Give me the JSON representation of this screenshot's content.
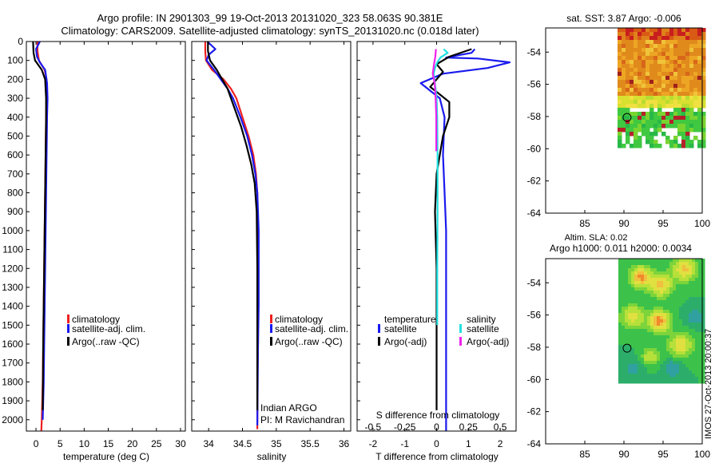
{
  "title": {
    "line1": "Argo profile: IN 2901303_99 19-Oct-2013 20131020_323 58.063S 90.381E",
    "line2": "Climatology: CARS2009. Satellite-adjusted climatology: synTS_20131020.nc (0.018d later)"
  },
  "colors": {
    "climatology": "#ee2020",
    "satellite": "#1a1aee",
    "argo": "#000000",
    "sal_satellite": "#22e0e0",
    "sal_argo": "#ee22ee"
  },
  "chart_data": [
    {
      "id": "temperature",
      "type": "line",
      "xlabel": "temperature (deg C)",
      "ylabel": "",
      "xlim": [
        -2,
        31
      ],
      "ylim": [
        2060,
        0
      ],
      "xticks": [
        0,
        5,
        10,
        15,
        20,
        25,
        30
      ],
      "yticks": [
        0,
        100,
        200,
        300,
        400,
        500,
        600,
        700,
        800,
        900,
        1000,
        1100,
        1200,
        1300,
        1400,
        1500,
        1600,
        1700,
        1800,
        1900,
        2000
      ],
      "legend": [
        "climatology",
        "satellite-adj. clim.",
        "Argo(..raw -QC)"
      ],
      "series": [
        {
          "name": "climatology",
          "color_key": "climatology",
          "x": [
            0.3,
            0.3,
            0.6,
            1.8,
            2.2,
            2.3,
            2.2,
            2.1,
            2.0,
            1.9,
            1.8,
            1.7,
            1.6,
            1.5,
            1.4,
            1.3,
            1.2,
            1.1
          ],
          "y": [
            0,
            50,
            100,
            150,
            200,
            250,
            300,
            400,
            600,
            800,
            1000,
            1200,
            1400,
            1600,
            1800,
            1900,
            2000,
            2060
          ]
        },
        {
          "name": "satellite-adj. clim.",
          "color_key": "satellite",
          "x": [
            0.8,
            0.0,
            0.2,
            0.8,
            1.9,
            2.3,
            2.4,
            2.3,
            2.2,
            2.1,
            2.0,
            1.9,
            1.8,
            1.7,
            1.6,
            1.5,
            1.4
          ],
          "y": [
            0,
            40,
            80,
            110,
            150,
            220,
            300,
            400,
            600,
            800,
            1000,
            1200,
            1400,
            1600,
            1800,
            1900,
            2000
          ]
        },
        {
          "name": "Argo(..raw -QC)",
          "color_key": "argo",
          "x": [
            -0.6,
            -0.5,
            -0.2,
            1.2,
            1.9,
            2.1,
            2.1,
            2.0,
            1.9,
            1.8,
            1.7,
            1.6,
            1.5,
            1.4
          ],
          "y": [
            0,
            60,
            100,
            150,
            200,
            300,
            400,
            600,
            800,
            1000,
            1200,
            1400,
            1600,
            1950
          ]
        }
      ]
    },
    {
      "id": "salinity",
      "type": "line",
      "xlabel": "salinity",
      "ylabel": "",
      "xlim": [
        33.75,
        36.1
      ],
      "ylim": [
        2060,
        0
      ],
      "xticks": [
        34,
        34.5,
        35,
        35.5,
        36
      ],
      "xticklabels": [
        "34",
        "34.5",
        "35",
        "35.5",
        "36"
      ],
      "legend": [
        "climatology",
        "satellite-adj. clim.",
        "Argo(..raw -QC)"
      ],
      "annotations": [
        "Indian ARGO",
        "PI: M Ravichandran"
      ],
      "series": [
        {
          "name": "climatology",
          "color_key": "climatology",
          "x": [
            33.95,
            33.95,
            33.96,
            34.05,
            34.22,
            34.33,
            34.41,
            34.5,
            34.59,
            34.66,
            34.7,
            34.72,
            34.73,
            34.73,
            34.73,
            34.73,
            34.72,
            34.72
          ],
          "y": [
            0,
            50,
            100,
            150,
            200,
            250,
            300,
            400,
            500,
            600,
            700,
            800,
            1000,
            1200,
            1400,
            1600,
            1800,
            2050
          ]
        },
        {
          "name": "satellite-adj. clim.",
          "color_key": "satellite",
          "x": [
            33.98,
            34.1,
            34.0,
            33.97,
            34.08,
            34.18,
            34.28,
            34.36,
            34.47,
            34.57,
            34.64,
            34.69,
            34.72,
            34.74,
            34.74,
            34.74,
            34.73,
            34.72
          ],
          "y": [
            0,
            40,
            70,
            100,
            150,
            200,
            250,
            300,
            400,
            500,
            600,
            700,
            800,
            1000,
            1200,
            1400,
            1600,
            2030
          ]
        },
        {
          "name": "Argo(..raw -QC)",
          "color_key": "argo",
          "x": [
            33.99,
            33.99,
            34.02,
            34.12,
            34.2,
            34.28,
            34.38,
            34.48,
            34.56,
            34.63,
            34.68,
            34.71,
            34.72,
            34.72
          ],
          "y": [
            0,
            50,
            100,
            150,
            200,
            250,
            350,
            450,
            550,
            650,
            750,
            900,
            1200,
            1950
          ]
        }
      ]
    },
    {
      "id": "difference",
      "type": "line",
      "xlabel": "T difference from climatology",
      "xlabel_top": "S difference from climatology",
      "xlim": [
        -2.5,
        2.5
      ],
      "ylim": [
        2060,
        0
      ],
      "xticks": [
        -2,
        -1,
        0,
        1,
        2
      ],
      "xticks_s": [
        -0.5,
        -0.25,
        0,
        0.25,
        0.5
      ],
      "xticklabels_s": [
        "-0.5",
        "-0.25",
        "0",
        "0.25",
        "0.5"
      ],
      "legend": {
        "temperature_header": "temperature",
        "salinity_header": "salinity",
        "t_satellite": "satellite",
        "t_argo": "Argo(-adj)",
        "s_satellite": "satellite",
        "s_argo": "Argo(-adj)"
      },
      "series": [
        {
          "name": "T satellite",
          "color_key": "satellite",
          "x": [
            1.2,
            1.1,
            0.3,
            1.3,
            2.3,
            1.6,
            0.2,
            -0.5,
            -0.2,
            0.1,
            0.25,
            0.2,
            0.25,
            0.3,
            0.3,
            0.3,
            0.3,
            0.3
          ],
          "y": [
            40,
            60,
            85,
            90,
            110,
            140,
            170,
            220,
            260,
            300,
            400,
            600,
            800,
            1000,
            1300,
            1600,
            1900,
            2060
          ]
        },
        {
          "name": "T Argo(-adj)",
          "color_key": "argo",
          "x": [
            1.1,
            0.4,
            0.0,
            0.2,
            0.0,
            -0.2,
            0.1,
            0.4,
            0.4,
            0.2,
            0.0,
            -0.05,
            0.0,
            0.0,
            0.0,
            0.0
          ],
          "y": [
            40,
            80,
            120,
            160,
            200,
            240,
            280,
            320,
            400,
            500,
            700,
            900,
            1200,
            1500,
            1800,
            1950
          ]
        },
        {
          "name": "S satellite",
          "color_key": "sal_satellite",
          "x": [
            0.22,
            0.35,
            0.12,
            0.02,
            -0.05,
            -0.09,
            -0.07,
            -0.03,
            0.0,
            0.02,
            0.03,
            0.03,
            0.02,
            0.02
          ],
          "y": [
            40,
            60,
            85,
            110,
            140,
            170,
            200,
            250,
            300,
            400,
            600,
            900,
            1200,
            1500
          ]
        },
        {
          "name": "S Argo(-adj)",
          "color_key": "sal_argo",
          "x": [
            -0.02,
            -0.04,
            -0.08,
            -0.12,
            -0.06,
            -0.03,
            -0.01,
            -0.01,
            -0.01
          ],
          "y": [
            40,
            80,
            120,
            170,
            220,
            300,
            400,
            500,
            580
          ]
        }
      ]
    },
    {
      "id": "sst_map",
      "type": "heatmap",
      "title": "sat. SST: 3.87 Argo: -0.006",
      "xlim": [
        80,
        100
      ],
      "ylim": [
        -64,
        -52.5
      ],
      "xticks": [
        85,
        90,
        95,
        100
      ],
      "yticks": [
        -54,
        -56,
        -58,
        -60,
        -62,
        -64
      ],
      "marker": {
        "lon": 90.4,
        "lat": -58.06
      }
    },
    {
      "id": "sla_map",
      "type": "heatmap",
      "title_line1": "Altim. SLA: 0.02",
      "title_line2": "Argo h1000: 0.011 h2000: 0.0034",
      "xlim": [
        80,
        100
      ],
      "ylim": [
        -64,
        -52.5
      ],
      "xticks": [
        85,
        90,
        95,
        100
      ],
      "yticks": [
        -54,
        -56,
        -58,
        -60,
        -62,
        -64
      ],
      "marker": {
        "lon": 90.4,
        "lat": -58.06
      }
    }
  ],
  "footer_stamp": "IMOS 27-Oct-2013 20:00:37"
}
